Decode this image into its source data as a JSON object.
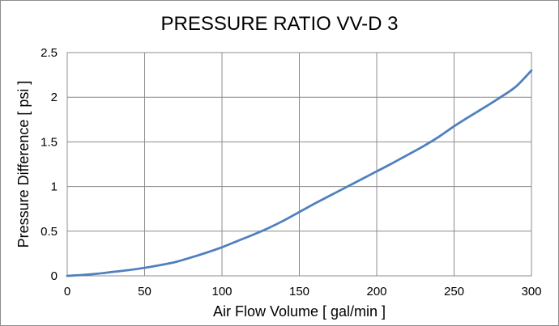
{
  "chart_data": {
    "type": "line",
    "title": "PRESSURE RATIO VV-D 3",
    "xlabel": "Air Flow Volume [ gal/min ]",
    "ylabel": "Pressure Difference [ psi ]",
    "xlim": [
      0,
      300
    ],
    "ylim": [
      0,
      2.5
    ],
    "x_ticks": [
      0,
      50,
      100,
      150,
      200,
      250,
      300
    ],
    "y_ticks": [
      0,
      0.5,
      1,
      1.5,
      2,
      2.5
    ],
    "x_tick_labels": [
      "0",
      "50",
      "100",
      "150",
      "200",
      "250",
      "300"
    ],
    "y_tick_labels": [
      "0",
      "0.5",
      "1",
      "1.5",
      "2",
      "2.5"
    ],
    "grid": true,
    "legend": "none",
    "series": [
      {
        "color": "#4f7fbd",
        "x": [
          0,
          10,
          20,
          30,
          40,
          50,
          60,
          70,
          80,
          90,
          100,
          110,
          120,
          130,
          140,
          150,
          160,
          170,
          180,
          190,
          200,
          210,
          220,
          230,
          240,
          250,
          260,
          270,
          280,
          290,
          300
        ],
        "y": [
          0,
          0.01,
          0.025,
          0.045,
          0.065,
          0.09,
          0.12,
          0.155,
          0.205,
          0.26,
          0.32,
          0.39,
          0.46,
          0.535,
          0.62,
          0.715,
          0.81,
          0.9,
          0.99,
          1.08,
          1.17,
          1.26,
          1.355,
          1.45,
          1.555,
          1.675,
          1.785,
          1.89,
          2.0,
          2.12,
          2.3
        ]
      }
    ]
  }
}
